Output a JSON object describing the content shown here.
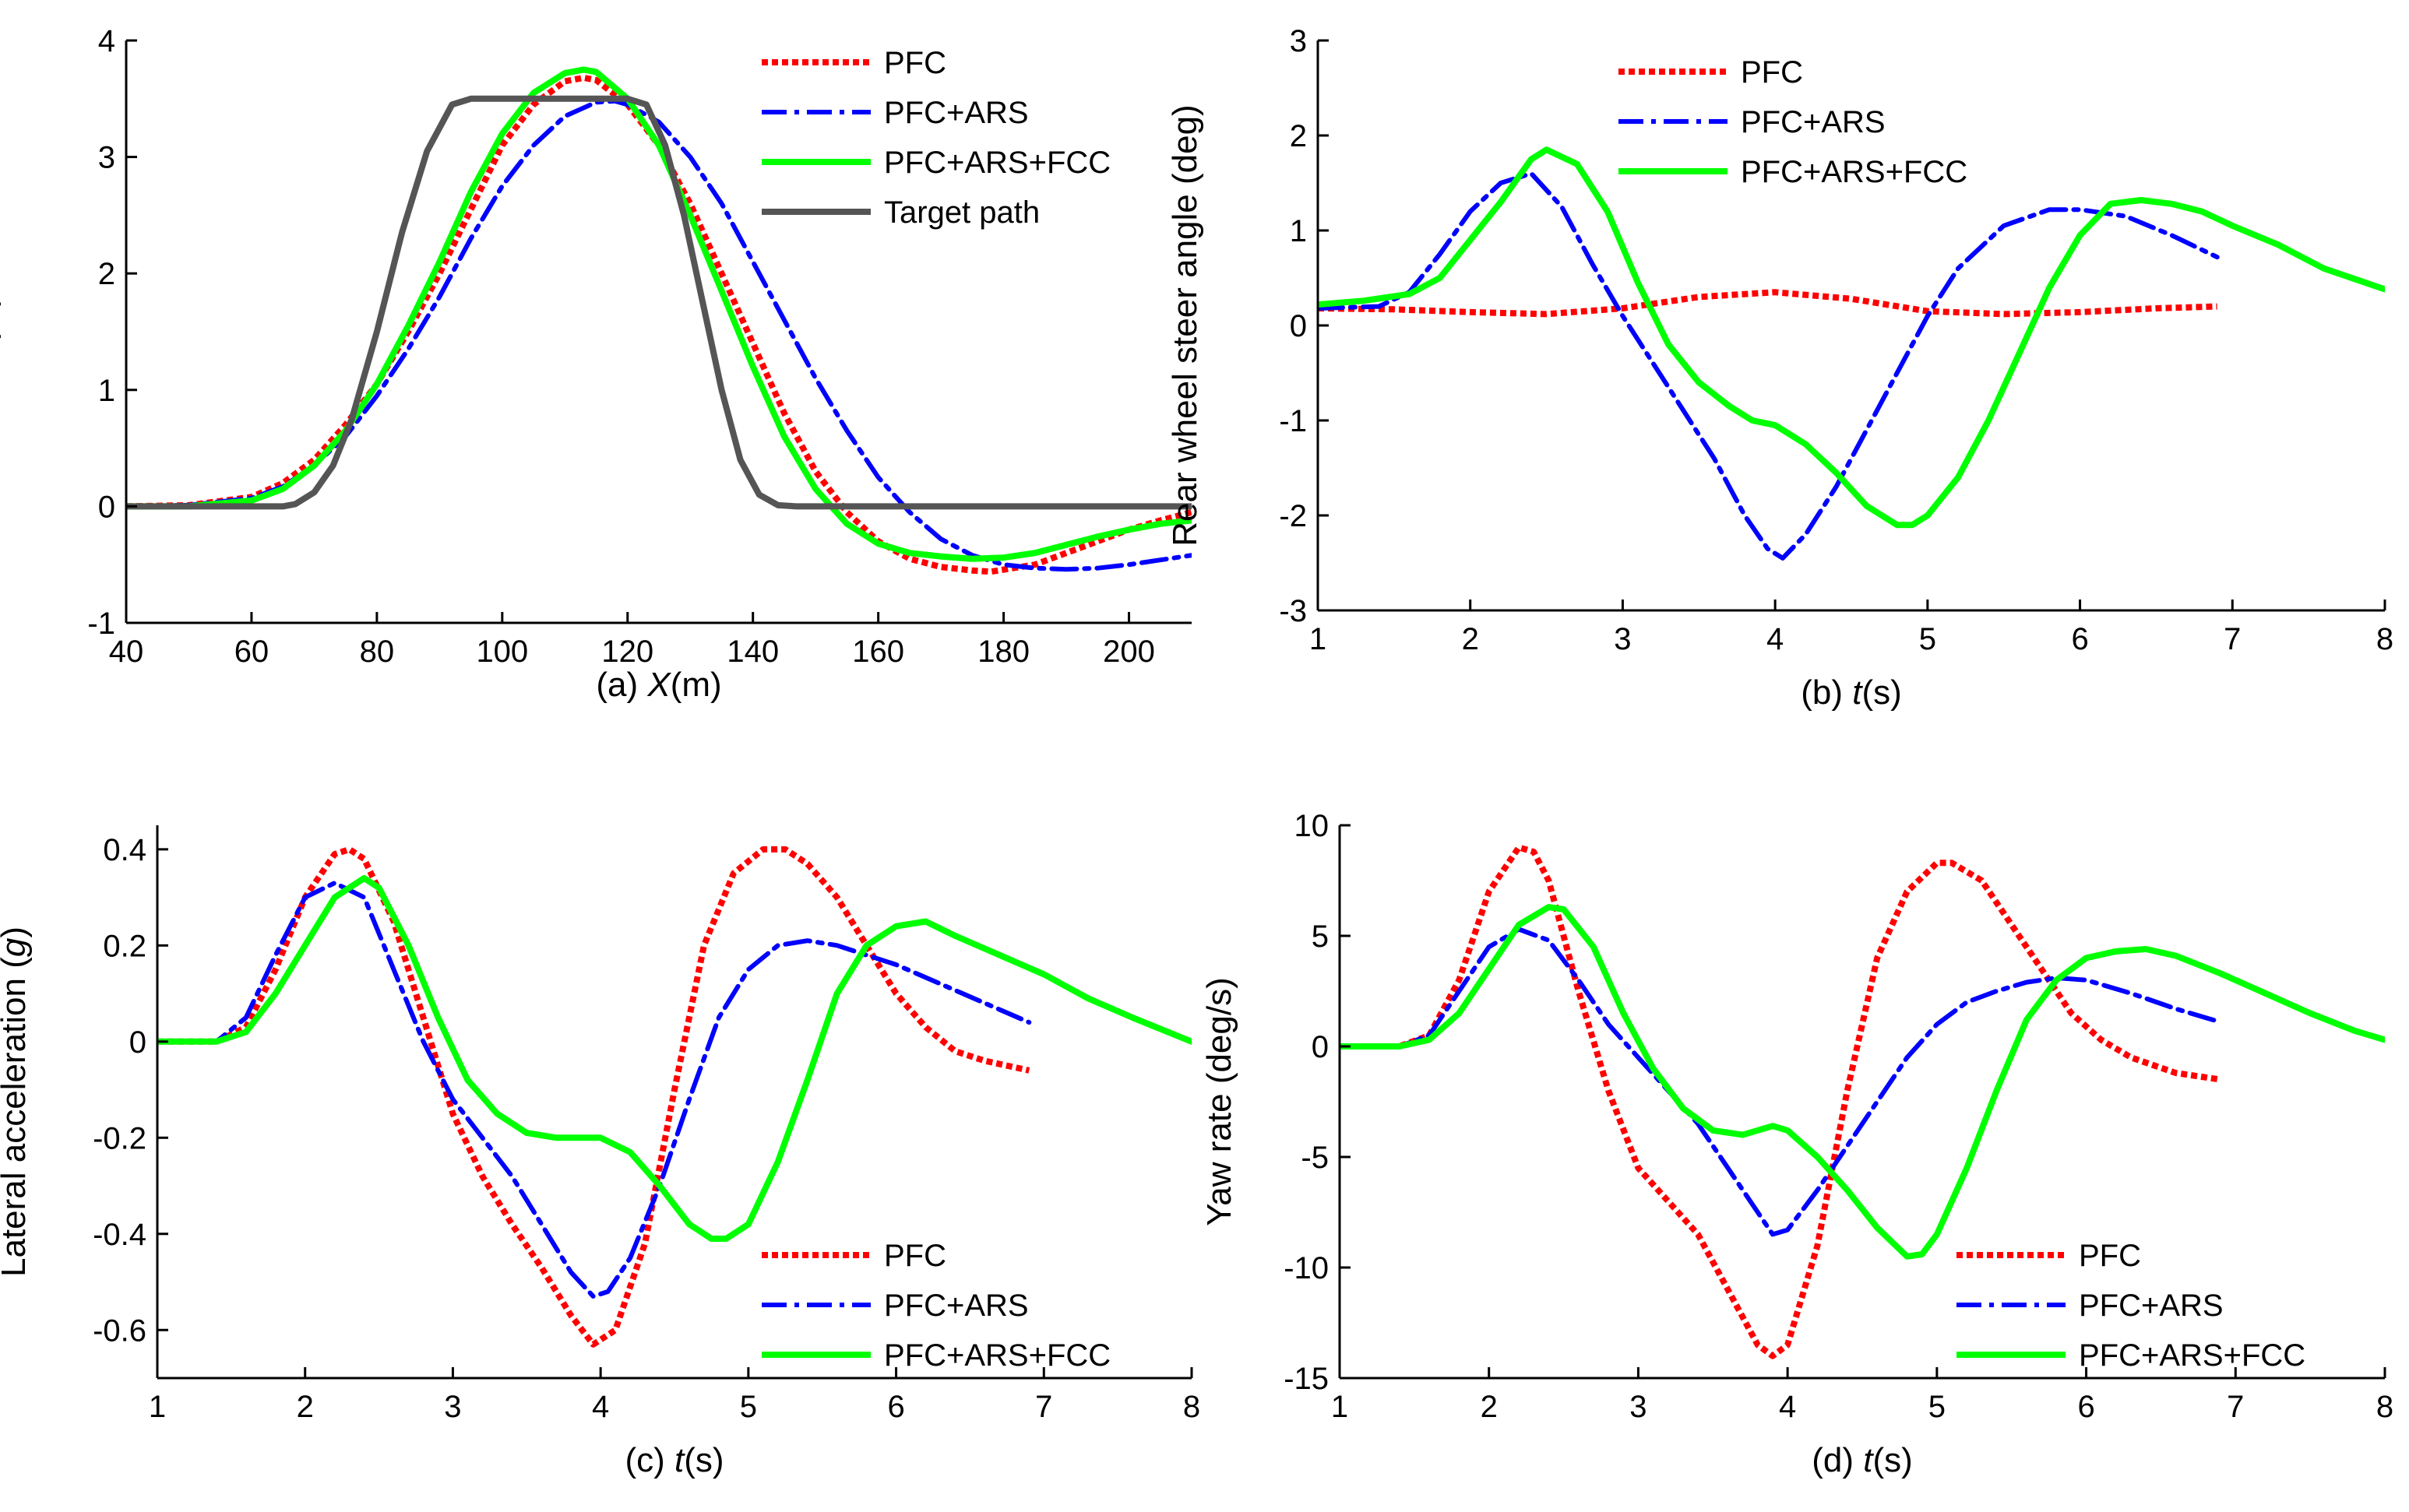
{
  "figure_title": "",
  "chart_data": [
    {
      "type": "line",
      "panel_label": "(a)",
      "title": "",
      "xlabel_var": "X",
      "xlabel_unit": "(m)",
      "ylabel_var": "Y",
      "ylabel_unit": "(m)",
      "xlim": [
        40,
        210
      ],
      "ylim": [
        -1,
        4
      ],
      "xticks": [
        40,
        60,
        80,
        100,
        120,
        140,
        160,
        180,
        200
      ],
      "yticks": [
        -1,
        0,
        1,
        2,
        3,
        4
      ],
      "legend": {
        "position": "top-right"
      },
      "series": [
        {
          "name": "PFC",
          "color": "#ff0000",
          "style": "dotted",
          "x": [
            40,
            50,
            60,
            65,
            70,
            75,
            80,
            85,
            90,
            95,
            100,
            105,
            110,
            113,
            115,
            120,
            125,
            130,
            135,
            140,
            145,
            150,
            155,
            160,
            165,
            170,
            175,
            178,
            185,
            190,
            195,
            200,
            205,
            210
          ],
          "y": [
            0,
            0.01,
            0.08,
            0.2,
            0.4,
            0.7,
            1.05,
            1.5,
            2.0,
            2.55,
            3.1,
            3.45,
            3.65,
            3.68,
            3.66,
            3.45,
            3.1,
            2.6,
            2.0,
            1.4,
            0.8,
            0.3,
            -0.05,
            -0.3,
            -0.45,
            -0.52,
            -0.55,
            -0.56,
            -0.5,
            -0.4,
            -0.3,
            -0.2,
            -0.12,
            -0.05
          ]
        },
        {
          "name": "PFC+ARS",
          "color": "#0000ff",
          "style": "dashdot",
          "x": [
            40,
            50,
            60,
            65,
            70,
            75,
            80,
            85,
            90,
            95,
            100,
            105,
            110,
            115,
            118,
            120,
            125,
            130,
            135,
            140,
            145,
            150,
            155,
            160,
            165,
            170,
            175,
            180,
            185,
            190,
            195,
            200,
            205,
            210
          ],
          "y": [
            0,
            0.01,
            0.07,
            0.17,
            0.35,
            0.6,
            0.95,
            1.35,
            1.8,
            2.3,
            2.75,
            3.1,
            3.35,
            3.47,
            3.48,
            3.45,
            3.3,
            3.0,
            2.6,
            2.1,
            1.6,
            1.1,
            0.65,
            0.25,
            -0.05,
            -0.28,
            -0.42,
            -0.5,
            -0.53,
            -0.54,
            -0.53,
            -0.5,
            -0.46,
            -0.42
          ]
        },
        {
          "name": "PFC+ARS+FCC",
          "color": "#00ff00",
          "style": "solid",
          "x": [
            40,
            50,
            60,
            65,
            70,
            75,
            80,
            85,
            90,
            95,
            100,
            105,
            110,
            113,
            115,
            120,
            125,
            130,
            135,
            140,
            145,
            150,
            155,
            160,
            165,
            170,
            175,
            180,
            185,
            190,
            195,
            200,
            205,
            210
          ],
          "y": [
            0,
            0,
            0.05,
            0.15,
            0.35,
            0.65,
            1.05,
            1.55,
            2.1,
            2.7,
            3.2,
            3.55,
            3.72,
            3.75,
            3.73,
            3.5,
            3.1,
            2.5,
            1.85,
            1.2,
            0.6,
            0.15,
            -0.15,
            -0.32,
            -0.4,
            -0.43,
            -0.45,
            -0.44,
            -0.4,
            -0.33,
            -0.26,
            -0.2,
            -0.15,
            -0.12
          ]
        },
        {
          "name": "Target path",
          "color": "#555555",
          "style": "solid",
          "x": [
            40,
            60,
            65,
            67,
            70,
            73,
            76,
            80,
            84,
            88,
            92,
            95,
            100,
            110,
            120,
            123,
            126,
            129,
            132,
            135,
            138,
            141,
            144,
            147,
            150,
            160,
            180,
            210
          ],
          "y": [
            0,
            0,
            0,
            0.02,
            0.12,
            0.35,
            0.75,
            1.5,
            2.35,
            3.05,
            3.45,
            3.5,
            3.5,
            3.5,
            3.5,
            3.45,
            3.1,
            2.5,
            1.75,
            1.0,
            0.4,
            0.1,
            0.01,
            0,
            0,
            0,
            0,
            0
          ]
        }
      ]
    },
    {
      "type": "line",
      "panel_label": "(b)",
      "title": "",
      "xlabel_var": "t",
      "xlabel_unit": "(s)",
      "ylabel": "Rear wheel steer angle (deg)",
      "xlim": [
        1,
        8
      ],
      "ylim": [
        -3,
        3
      ],
      "xticks": [
        1,
        2,
        3,
        4,
        5,
        6,
        7,
        8
      ],
      "yticks": [
        -3,
        -2,
        -1,
        0,
        1,
        2,
        3
      ],
      "legend": {
        "position": "top-center"
      },
      "series": [
        {
          "name": "PFC",
          "color": "#ff0000",
          "style": "dotted",
          "x": [
            1,
            1.5,
            2,
            2.5,
            3,
            3.5,
            4,
            4.5,
            5,
            5.5,
            6,
            6.5,
            6.9
          ],
          "y": [
            0.18,
            0.17,
            0.14,
            0.12,
            0.18,
            0.3,
            0.35,
            0.28,
            0.15,
            0.12,
            0.14,
            0.18,
            0.2
          ]
        },
        {
          "name": "PFC+ARS",
          "color": "#0000ff",
          "style": "dashdot",
          "x": [
            1,
            1.4,
            1.6,
            1.8,
            2.0,
            2.2,
            2.4,
            2.6,
            2.8,
            3.0,
            3.2,
            3.4,
            3.6,
            3.8,
            3.95,
            4.05,
            4.2,
            4.4,
            4.6,
            4.8,
            5.0,
            5.2,
            5.5,
            5.8,
            6.0,
            6.3,
            6.6,
            6.9
          ],
          "y": [
            0.18,
            0.2,
            0.35,
            0.75,
            1.2,
            1.5,
            1.6,
            1.25,
            0.65,
            0.1,
            -0.4,
            -0.9,
            -1.4,
            -2.0,
            -2.35,
            -2.45,
            -2.2,
            -1.7,
            -1.1,
            -0.5,
            0.1,
            0.6,
            1.05,
            1.22,
            1.22,
            1.15,
            0.95,
            0.72
          ]
        },
        {
          "name": "PFC+ARS+FCC",
          "color": "#00ff00",
          "style": "solid",
          "x": [
            1,
            1.3,
            1.6,
            1.8,
            2.0,
            2.2,
            2.4,
            2.5,
            2.7,
            2.9,
            3.1,
            3.3,
            3.5,
            3.7,
            3.85,
            4.0,
            4.2,
            4.4,
            4.6,
            4.8,
            4.9,
            5.0,
            5.2,
            5.4,
            5.6,
            5.8,
            6.0,
            6.2,
            6.4,
            6.6,
            6.8,
            7.0,
            7.3,
            7.6,
            8.0
          ],
          "y": [
            0.22,
            0.26,
            0.33,
            0.5,
            0.9,
            1.3,
            1.75,
            1.85,
            1.7,
            1.2,
            0.45,
            -0.2,
            -0.6,
            -0.85,
            -1.0,
            -1.05,
            -1.25,
            -1.55,
            -1.9,
            -2.1,
            -2.1,
            -2.0,
            -1.6,
            -1.0,
            -0.3,
            0.4,
            0.95,
            1.28,
            1.32,
            1.28,
            1.2,
            1.05,
            0.85,
            0.6,
            0.38
          ]
        }
      ]
    },
    {
      "type": "line",
      "panel_label": "(c)",
      "title": "",
      "xlabel_var": "t",
      "xlabel_unit": "(s)",
      "ylabel_prefix": "Lateral acceleration (",
      "ylabel_var": "g",
      "ylabel_suffix": ")",
      "xlim": [
        1,
        8
      ],
      "ylim": [
        -0.7,
        0.45
      ],
      "xticks": [
        1,
        2,
        3,
        4,
        5,
        6,
        7,
        8
      ],
      "yticks": [
        -0.6,
        -0.4,
        -0.2,
        0,
        0.2,
        0.4
      ],
      "legend": {
        "position": "bottom-right"
      },
      "series": [
        {
          "name": "PFC",
          "color": "#ff0000",
          "style": "dotted",
          "x": [
            1,
            1.4,
            1.6,
            1.8,
            2.0,
            2.2,
            2.3,
            2.4,
            2.6,
            2.8,
            3.0,
            3.2,
            3.4,
            3.6,
            3.8,
            3.95,
            4.1,
            4.3,
            4.5,
            4.7,
            4.9,
            5.1,
            5.25,
            5.4,
            5.6,
            5.8,
            6.0,
            6.2,
            6.4,
            6.6,
            6.9
          ],
          "y": [
            0,
            0,
            0.03,
            0.15,
            0.3,
            0.39,
            0.4,
            0.38,
            0.25,
            0.05,
            -0.15,
            -0.28,
            -0.38,
            -0.47,
            -0.57,
            -0.63,
            -0.6,
            -0.42,
            -0.1,
            0.2,
            0.35,
            0.4,
            0.4,
            0.37,
            0.3,
            0.2,
            0.1,
            0.03,
            -0.02,
            -0.04,
            -0.06
          ]
        },
        {
          "name": "PFC+ARS",
          "color": "#0000ff",
          "style": "dashdot",
          "x": [
            1,
            1.4,
            1.6,
            1.8,
            2.0,
            2.2,
            2.4,
            2.6,
            2.8,
            3.0,
            3.2,
            3.4,
            3.6,
            3.8,
            3.95,
            4.05,
            4.2,
            4.4,
            4.6,
            4.8,
            5.0,
            5.2,
            5.4,
            5.6,
            5.8,
            6.0,
            6.3,
            6.6,
            6.9
          ],
          "y": [
            0,
            0,
            0.05,
            0.18,
            0.3,
            0.33,
            0.3,
            0.15,
            0,
            -0.12,
            -0.2,
            -0.28,
            -0.38,
            -0.48,
            -0.53,
            -0.52,
            -0.45,
            -0.3,
            -0.12,
            0.05,
            0.15,
            0.2,
            0.21,
            0.2,
            0.18,
            0.16,
            0.12,
            0.08,
            0.04
          ]
        },
        {
          "name": "PFC+ARS+FCC",
          "color": "#00ff00",
          "style": "solid",
          "x": [
            1,
            1.4,
            1.6,
            1.8,
            2.0,
            2.2,
            2.4,
            2.5,
            2.7,
            2.9,
            3.1,
            3.3,
            3.5,
            3.7,
            3.9,
            4.0,
            4.2,
            4.4,
            4.6,
            4.75,
            4.85,
            5.0,
            5.2,
            5.4,
            5.6,
            5.8,
            6.0,
            6.2,
            6.4,
            6.7,
            7.0,
            7.3,
            7.6,
            8.0
          ],
          "y": [
            0,
            0,
            0.02,
            0.1,
            0.2,
            0.3,
            0.34,
            0.32,
            0.2,
            0.05,
            -0.08,
            -0.15,
            -0.19,
            -0.2,
            -0.2,
            -0.2,
            -0.23,
            -0.3,
            -0.38,
            -0.41,
            -0.41,
            -0.38,
            -0.25,
            -0.08,
            0.1,
            0.2,
            0.24,
            0.25,
            0.22,
            0.18,
            0.14,
            0.09,
            0.05,
            0
          ]
        }
      ]
    },
    {
      "type": "line",
      "panel_label": "(d)",
      "title": "",
      "xlabel_var": "t",
      "xlabel_unit": "(s)",
      "ylabel": "Yaw rate (deg/s)",
      "xlim": [
        1,
        8
      ],
      "ylim": [
        -15,
        10
      ],
      "xticks": [
        1,
        2,
        3,
        4,
        5,
        6,
        7,
        8
      ],
      "yticks": [
        -15,
        -10,
        -5,
        0,
        5,
        10
      ],
      "legend": {
        "position": "bottom-right"
      },
      "series": [
        {
          "name": "PFC",
          "color": "#ff0000",
          "style": "dotted",
          "x": [
            1,
            1.4,
            1.6,
            1.8,
            2.0,
            2.2,
            2.3,
            2.4,
            2.6,
            2.8,
            3.0,
            3.2,
            3.4,
            3.6,
            3.8,
            3.9,
            4.0,
            4.2,
            4.4,
            4.6,
            4.8,
            5.0,
            5.1,
            5.3,
            5.5,
            5.7,
            5.9,
            6.1,
            6.3,
            6.6,
            6.9
          ],
          "y": [
            0,
            0,
            0.5,
            3,
            7,
            9,
            8.8,
            7.5,
            2.5,
            -2,
            -5.5,
            -7,
            -8.5,
            -11,
            -13.5,
            -14,
            -13.5,
            -9,
            -2,
            4,
            7,
            8.3,
            8.3,
            7.5,
            5.5,
            3.5,
            1.5,
            0.3,
            -0.5,
            -1.2,
            -1.5
          ]
        },
        {
          "name": "PFC+ARS",
          "color": "#0000ff",
          "style": "dashdot",
          "x": [
            1,
            1.4,
            1.6,
            1.8,
            2.0,
            2.2,
            2.4,
            2.6,
            2.8,
            3.0,
            3.2,
            3.4,
            3.6,
            3.8,
            3.9,
            4.0,
            4.2,
            4.4,
            4.6,
            4.8,
            5.0,
            5.2,
            5.4,
            5.6,
            5.8,
            6.0,
            6.3,
            6.6,
            6.9
          ],
          "y": [
            0,
            0,
            0.5,
            2.5,
            4.5,
            5.3,
            4.8,
            3,
            1,
            -0.5,
            -2,
            -3.5,
            -5.5,
            -7.5,
            -8.5,
            -8.3,
            -6.5,
            -4.5,
            -2.5,
            -0.5,
            1,
            2,
            2.5,
            2.9,
            3.1,
            3,
            2.4,
            1.7,
            1.1
          ]
        },
        {
          "name": "PFC+ARS+FCC",
          "color": "#00ff00",
          "style": "solid",
          "x": [
            1,
            1.4,
            1.6,
            1.8,
            2.0,
            2.2,
            2.4,
            2.5,
            2.7,
            2.9,
            3.1,
            3.3,
            3.5,
            3.7,
            3.9,
            4.0,
            4.2,
            4.4,
            4.6,
            4.8,
            4.9,
            5.0,
            5.2,
            5.4,
            5.6,
            5.8,
            6.0,
            6.2,
            6.4,
            6.6,
            6.9,
            7.2,
            7.5,
            7.8,
            8.0
          ],
          "y": [
            0,
            0,
            0.3,
            1.5,
            3.5,
            5.5,
            6.3,
            6.2,
            4.5,
            1.5,
            -1,
            -2.8,
            -3.8,
            -4,
            -3.6,
            -3.8,
            -5,
            -6.5,
            -8.2,
            -9.5,
            -9.4,
            -8.5,
            -5.5,
            -2,
            1.2,
            3,
            4,
            4.3,
            4.4,
            4.1,
            3.3,
            2.4,
            1.5,
            0.7,
            0.3
          ]
        }
      ]
    }
  ]
}
